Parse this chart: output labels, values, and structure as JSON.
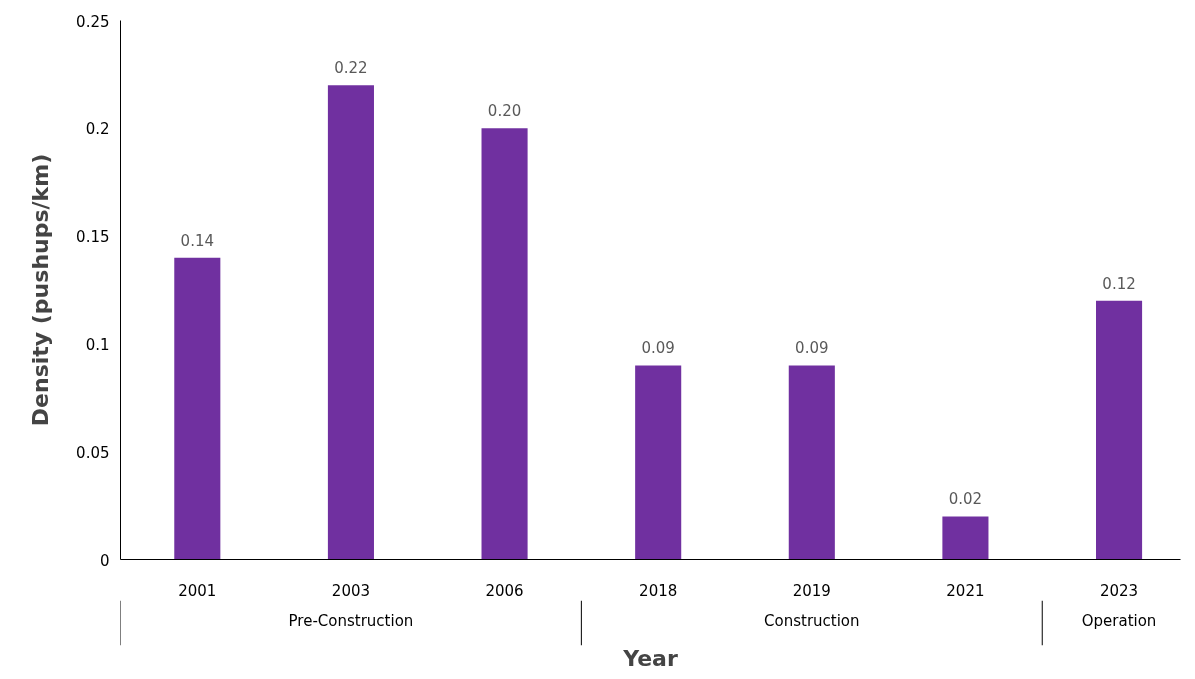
{
  "chart_data": {
    "type": "bar",
    "xlabel": "Year",
    "ylabel": "Density (pushups/km)",
    "categories": [
      "2001",
      "2003",
      "2006",
      "2018",
      "2019",
      "2021",
      "2023"
    ],
    "values": [
      0.14,
      0.22,
      0.2,
      0.09,
      0.09,
      0.02,
      0.12
    ],
    "value_labels": [
      "0.14",
      "0.22",
      "0.20",
      "0.09",
      "0.09",
      "0.02",
      "0.12"
    ],
    "color": "#7030a0",
    "ylim": [
      0,
      0.25
    ],
    "yticks": [
      0,
      {
        "value": 0.05,
        "label": "0.05"
      },
      {
        "value": 0.1,
        "label": "0.1"
      },
      {
        "value": 0.15,
        "label": "0.15"
      },
      {
        "value": 0.2,
        "label": "0.2"
      },
      {
        "value": 0.25,
        "label": "0.25"
      }
    ],
    "grid": false,
    "annotations": [
      "Pre-Construction",
      "Construction",
      "Operation"
    ]
  }
}
